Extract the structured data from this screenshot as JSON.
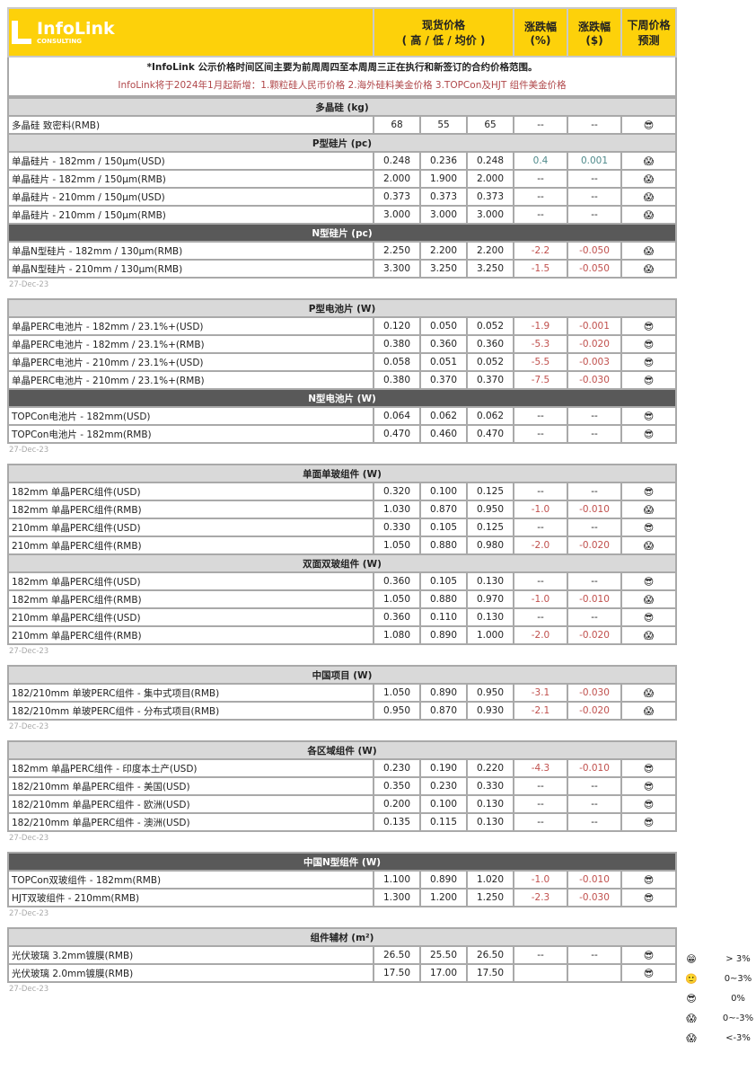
{
  "header": {
    "logo_name": "InfoLink",
    "logo_sub": "CONSULTING",
    "col_price_line1": "现货价格",
    "col_price_line2": "( 高 / 低 / 均价 )",
    "col_pct_line1": "涨跌幅",
    "col_pct_line2": "(%)",
    "col_usd_line1": "涨跌幅",
    "col_usd_line2": "($)",
    "col_forecast_line1": "下周价格",
    "col_forecast_line2": "预测"
  },
  "note": {
    "line1": "*InfoLink 公示价格时间区间主要为前周周四至本周周三正在执行和新签订的合约价格范围。",
    "line2": "InfoLink将于2024年1月起新增：1.颗粒硅人民币价格 2.海外硅料美金价格 3.TOPCon及HJT 组件美金价格"
  },
  "icons": {
    "cool": "😎",
    "scream": "😱",
    "grin": "😁",
    "smile": "🙂"
  },
  "colors": {
    "header_yellow": "#fdd10a",
    "negative": "#c0504d",
    "positive": "#4f8a8b",
    "section_light": "#d9d9d9",
    "section_dark": "#595959"
  },
  "blocks": [
    {
      "date": "",
      "sections": [
        {
          "title": "多晶硅 (kg)",
          "dark": false,
          "rows": [
            {
              "name": "多晶硅 致密料(RMB)",
              "high": "68",
              "low": "55",
              "avg": "65",
              "pct": "--",
              "usd": "--",
              "icon": "cool"
            }
          ]
        },
        {
          "title": "P型硅片 (pc)",
          "dark": false,
          "rows": [
            {
              "name": "单晶硅片 - 182mm / 150μm(USD)",
              "high": "0.248",
              "low": "0.236",
              "avg": "0.248",
              "pct": "0.4",
              "usd": "0.001",
              "icon": "scream"
            },
            {
              "name": "单晶硅片 - 182mm / 150μm(RMB)",
              "high": "2.000",
              "low": "1.900",
              "avg": "2.000",
              "pct": "--",
              "usd": "--",
              "icon": "scream"
            },
            {
              "name": "单晶硅片 - 210mm / 150μm(USD)",
              "high": "0.373",
              "low": "0.373",
              "avg": "0.373",
              "pct": "--",
              "usd": "--",
              "icon": "scream"
            },
            {
              "name": "单晶硅片 - 210mm / 150μm(RMB)",
              "high": "3.000",
              "low": "3.000",
              "avg": "3.000",
              "pct": "--",
              "usd": "--",
              "icon": "scream"
            }
          ]
        },
        {
          "title": "N型硅片 (pc)",
          "dark": true,
          "rows": [
            {
              "name": "单晶N型硅片 - 182mm / 130μm(RMB)",
              "high": "2.250",
              "low": "2.200",
              "avg": "2.200",
              "pct": "-2.2",
              "usd": "-0.050",
              "icon": "scream"
            },
            {
              "name": "单晶N型硅片 - 210mm / 130μm(RMB)",
              "high": "3.300",
              "low": "3.250",
              "avg": "3.250",
              "pct": "-1.5",
              "usd": "-0.050",
              "icon": "scream"
            }
          ]
        }
      ],
      "date_label": "27-Dec-23"
    },
    {
      "sections": [
        {
          "title": "P型电池片 (W)",
          "dark": false,
          "rows": [
            {
              "name": "单晶PERC电池片 - 182mm / 23.1%+(USD)",
              "high": "0.120",
              "low": "0.050",
              "avg": "0.052",
              "pct": "-1.9",
              "usd": "-0.001",
              "icon": "cool"
            },
            {
              "name": "单晶PERC电池片 - 182mm / 23.1%+(RMB)",
              "high": "0.380",
              "low": "0.360",
              "avg": "0.360",
              "pct": "-5.3",
              "usd": "-0.020",
              "icon": "cool"
            },
            {
              "name": "单晶PERC电池片 - 210mm / 23.1%+(USD)",
              "high": "0.058",
              "low": "0.051",
              "avg": "0.052",
              "pct": "-5.5",
              "usd": "-0.003",
              "icon": "cool"
            },
            {
              "name": "单晶PERC电池片 - 210mm / 23.1%+(RMB)",
              "high": "0.380",
              "low": "0.370",
              "avg": "0.370",
              "pct": "-7.5",
              "usd": "-0.030",
              "icon": "cool"
            }
          ]
        },
        {
          "title": "N型电池片 (W)",
          "dark": true,
          "rows": [
            {
              "name": "TOPCon电池片 - 182mm(USD)",
              "high": "0.064",
              "low": "0.062",
              "avg": "0.062",
              "pct": "--",
              "usd": "--",
              "icon": "cool"
            },
            {
              "name": "TOPCon电池片 - 182mm(RMB)",
              "high": "0.470",
              "low": "0.460",
              "avg": "0.470",
              "pct": "--",
              "usd": "--",
              "icon": "cool"
            }
          ]
        }
      ],
      "date_label": "27-Dec-23"
    },
    {
      "sections": [
        {
          "title": "单面单玻组件 (W)",
          "dark": false,
          "rows": [
            {
              "name": "182mm 单晶PERC组件(USD)",
              "high": "0.320",
              "low": "0.100",
              "avg": "0.125",
              "pct": "--",
              "usd": "--",
              "icon": "cool"
            },
            {
              "name": "182mm 单晶PERC组件(RMB)",
              "high": "1.030",
              "low": "0.870",
              "avg": "0.950",
              "pct": "-1.0",
              "usd": "-0.010",
              "icon": "scream"
            },
            {
              "name": "210mm 单晶PERC组件(USD)",
              "high": "0.330",
              "low": "0.105",
              "avg": "0.125",
              "pct": "--",
              "usd": "--",
              "icon": "cool"
            },
            {
              "name": "210mm 单晶PERC组件(RMB)",
              "high": "1.050",
              "low": "0.880",
              "avg": "0.980",
              "pct": "-2.0",
              "usd": "-0.020",
              "icon": "scream"
            }
          ]
        },
        {
          "title": "双面双玻组件 (W)",
          "dark": false,
          "rows": [
            {
              "name": "182mm 单晶PERC组件(USD)",
              "high": "0.360",
              "low": "0.105",
              "avg": "0.130",
              "pct": "--",
              "usd": "--",
              "icon": "cool"
            },
            {
              "name": "182mm 单晶PERC组件(RMB)",
              "high": "1.050",
              "low": "0.880",
              "avg": "0.970",
              "pct": "-1.0",
              "usd": "-0.010",
              "icon": "scream"
            },
            {
              "name": "210mm 单晶PERC组件(USD)",
              "high": "0.360",
              "low": "0.110",
              "avg": "0.130",
              "pct": "--",
              "usd": "--",
              "icon": "cool"
            },
            {
              "name": "210mm 单晶PERC组件(RMB)",
              "high": "1.080",
              "low": "0.890",
              "avg": "1.000",
              "pct": "-2.0",
              "usd": "-0.020",
              "icon": "scream"
            }
          ]
        }
      ],
      "date_label": "27-Dec-23"
    },
    {
      "sections": [
        {
          "title": "中国项目 (W)",
          "dark": false,
          "rows": [
            {
              "name": "182/210mm 单玻PERC组件 - 集中式项目(RMB)",
              "high": "1.050",
              "low": "0.890",
              "avg": "0.950",
              "pct": "-3.1",
              "usd": "-0.030",
              "icon": "scream"
            },
            {
              "name": "182/210mm 单玻PERC组件 - 分布式项目(RMB)",
              "high": "0.950",
              "low": "0.870",
              "avg": "0.930",
              "pct": "-2.1",
              "usd": "-0.020",
              "icon": "scream"
            }
          ]
        }
      ],
      "date_label": "27-Dec-23"
    },
    {
      "sections": [
        {
          "title": "各区域组件 (W)",
          "dark": false,
          "rows": [
            {
              "name": "182mm 单晶PERC组件 - 印度本土产(USD)",
              "high": "0.230",
              "low": "0.190",
              "avg": "0.220",
              "pct": "-4.3",
              "usd": "-0.010",
              "icon": "cool"
            },
            {
              "name": "182/210mm 单晶PERC组件 - 美国(USD)",
              "high": "0.350",
              "low": "0.230",
              "avg": "0.330",
              "pct": "--",
              "usd": "--",
              "icon": "cool"
            },
            {
              "name": "182/210mm 单晶PERC组件 - 欧洲(USD)",
              "high": "0.200",
              "low": "0.100",
              "avg": "0.130",
              "pct": "--",
              "usd": "--",
              "icon": "cool"
            },
            {
              "name": "182/210mm 单晶PERC组件 - 澳洲(USD)",
              "high": "0.135",
              "low": "0.115",
              "avg": "0.130",
              "pct": "--",
              "usd": "--",
              "icon": "cool"
            }
          ]
        }
      ],
      "date_label": "27-Dec-23"
    },
    {
      "sections": [
        {
          "title": "中国N型组件 (W)",
          "dark": true,
          "rows": [
            {
              "name": "TOPCon双玻组件 - 182mm(RMB)",
              "high": "1.100",
              "low": "0.890",
              "avg": "1.020",
              "pct": "-1.0",
              "usd": "-0.010",
              "icon": "cool"
            },
            {
              "name": "HJT双玻组件 - 210mm(RMB)",
              "high": "1.300",
              "low": "1.200",
              "avg": "1.250",
              "pct": "-2.3",
              "usd": "-0.030",
              "icon": "cool"
            }
          ]
        }
      ],
      "date_label": "27-Dec-23"
    },
    {
      "sections": [
        {
          "title": "组件辅材 (m²)",
          "dark": false,
          "rows": [
            {
              "name": "光伏玻璃 3.2mm镀膜(RMB)",
              "high": "26.50",
              "low": "25.50",
              "avg": "26.50",
              "pct": "--",
              "usd": "--",
              "icon": "cool"
            },
            {
              "name": "光伏玻璃 2.0mm镀膜(RMB)",
              "high": "17.50",
              "low": "17.00",
              "avg": "17.50",
              "pct": "",
              "usd": "",
              "icon": "cool"
            }
          ]
        }
      ],
      "date_label": "27-Dec-23"
    }
  ],
  "legend": [
    {
      "icon": "grin",
      "label": "> 3%"
    },
    {
      "icon": "smile",
      "label": "0~3%"
    },
    {
      "icon": "cool",
      "label": "0%"
    },
    {
      "icon": "scream",
      "label": "0~-3%"
    },
    {
      "icon": "scream",
      "label": "<-3%"
    }
  ]
}
